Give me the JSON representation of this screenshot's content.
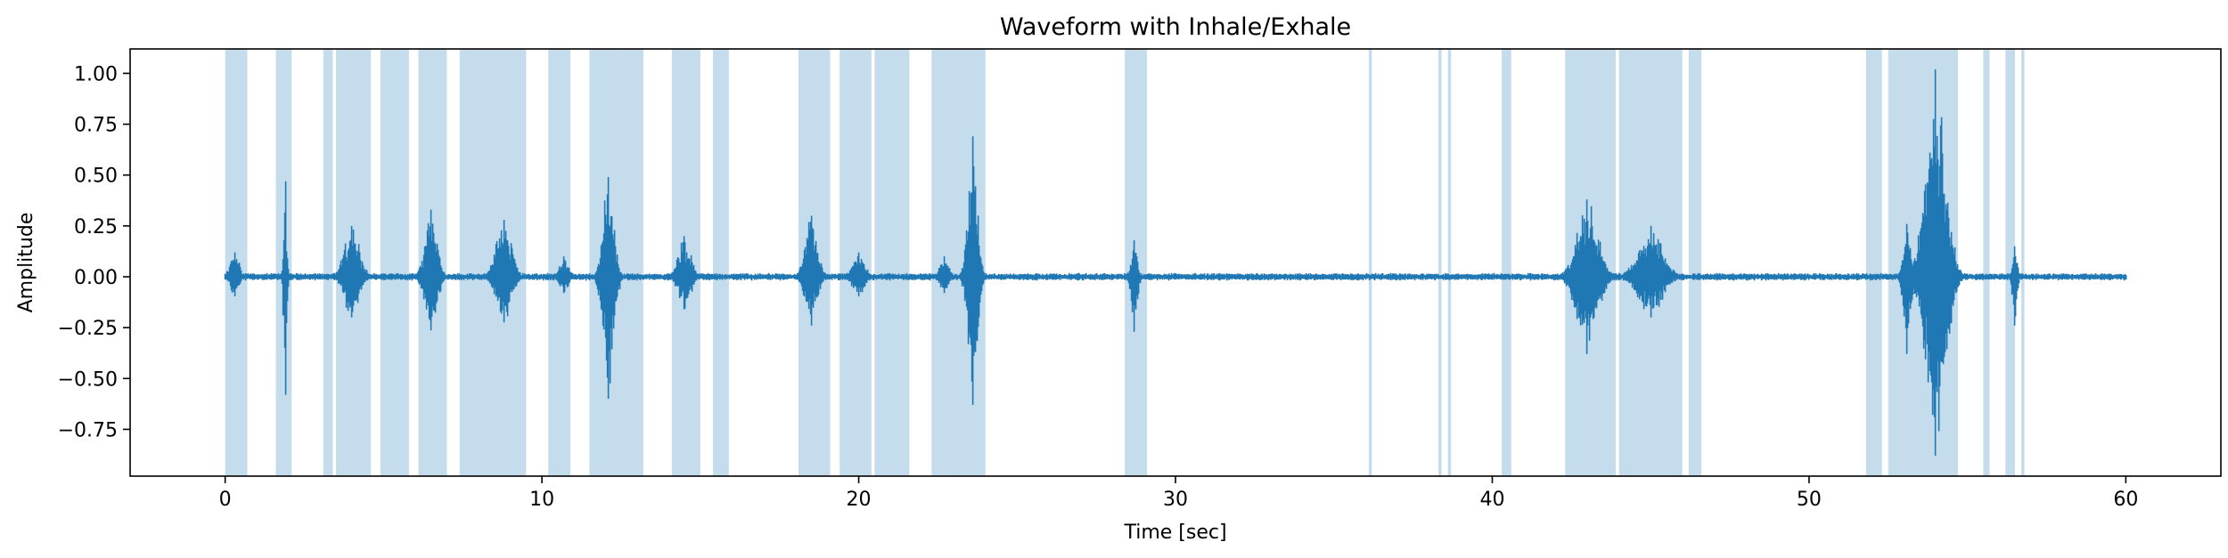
{
  "chart_data": {
    "type": "line",
    "title": "Waveform with Inhale/Exhale",
    "xlabel": "Time [sec]",
    "ylabel": "Amplitude",
    "xlim": [
      -3,
      63
    ],
    "ylim": [
      -0.98,
      1.12
    ],
    "xticks": [
      0,
      10,
      20,
      30,
      40,
      50,
      60
    ],
    "xtick_labels": [
      "0",
      "10",
      "20",
      "30",
      "40",
      "50",
      "60"
    ],
    "yticks": [
      1.0,
      0.75,
      0.5,
      0.25,
      0.0,
      -0.25,
      -0.5,
      -0.75
    ],
    "ytick_labels": [
      "1.00",
      "0.75",
      "0.50",
      "0.25",
      "0.00",
      "−0.25",
      "−0.50",
      "−0.75"
    ],
    "grid": false,
    "colors": {
      "waveform": "#1f77b4",
      "span": "#1f77b4"
    },
    "span_opacity": 0.26,
    "duration": 60,
    "baseline_noise_amplitude": 0.012,
    "breath_spans": [
      [
        0.0,
        0.7
      ],
      [
        1.6,
        2.1
      ],
      [
        3.1,
        3.4
      ],
      [
        3.5,
        4.6
      ],
      [
        4.9,
        5.8
      ],
      [
        6.1,
        7.0
      ],
      [
        7.4,
        8.1
      ],
      [
        8.1,
        9.5
      ],
      [
        10.2,
        10.9
      ],
      [
        11.5,
        12.5
      ],
      [
        12.5,
        13.2
      ],
      [
        14.1,
        15.0
      ],
      [
        15.4,
        15.9
      ],
      [
        18.1,
        19.1
      ],
      [
        19.4,
        20.4
      ],
      [
        20.5,
        21.6
      ],
      [
        22.3,
        23.1
      ],
      [
        23.1,
        24.0
      ],
      [
        28.4,
        29.1
      ],
      [
        36.1,
        36.2
      ],
      [
        38.3,
        38.4
      ],
      [
        38.6,
        38.7
      ],
      [
        40.3,
        40.6
      ],
      [
        42.3,
        43.9
      ],
      [
        44.0,
        46.0
      ],
      [
        46.2,
        46.6
      ],
      [
        51.8,
        52.3
      ],
      [
        52.5,
        53.1
      ],
      [
        53.1,
        54.7
      ],
      [
        55.5,
        55.7
      ],
      [
        56.2,
        56.5
      ],
      [
        56.7,
        56.8
      ]
    ],
    "bursts": [
      {
        "t": 0.3,
        "amp": 0.12,
        "dur": 0.6
      },
      {
        "t": 1.9,
        "amp": 0.47,
        "min": -0.58,
        "dur": 0.2
      },
      {
        "t": 4.0,
        "amp": 0.25,
        "dur": 1.0
      },
      {
        "t": 6.5,
        "amp": 0.33,
        "dur": 0.8
      },
      {
        "t": 8.8,
        "amp": 0.28,
        "dur": 1.0
      },
      {
        "t": 10.7,
        "amp": 0.1,
        "dur": 0.6
      },
      {
        "t": 12.1,
        "amp": 0.49,
        "min": -0.6,
        "dur": 0.7
      },
      {
        "t": 14.5,
        "amp": 0.2,
        "dur": 0.8
      },
      {
        "t": 18.5,
        "amp": 0.3,
        "dur": 0.8
      },
      {
        "t": 20.0,
        "amp": 0.12,
        "dur": 0.8
      },
      {
        "t": 22.7,
        "amp": 0.1,
        "dur": 0.6
      },
      {
        "t": 23.6,
        "amp": 0.69,
        "min": -0.63,
        "dur": 0.6
      },
      {
        "t": 28.7,
        "amp": 0.18,
        "min": -0.27,
        "dur": 0.4
      },
      {
        "t": 43.0,
        "amp": 0.38,
        "min": -0.38,
        "dur": 1.4
      },
      {
        "t": 45.0,
        "amp": 0.25,
        "dur": 1.6
      },
      {
        "t": 53.1,
        "amp": 0.26,
        "min": -0.38,
        "dur": 0.5
      },
      {
        "t": 54.0,
        "amp": 1.02,
        "min": -0.88,
        "dur": 1.3
      },
      {
        "t": 56.5,
        "amp": 0.15,
        "min": -0.24,
        "dur": 0.3
      }
    ]
  }
}
